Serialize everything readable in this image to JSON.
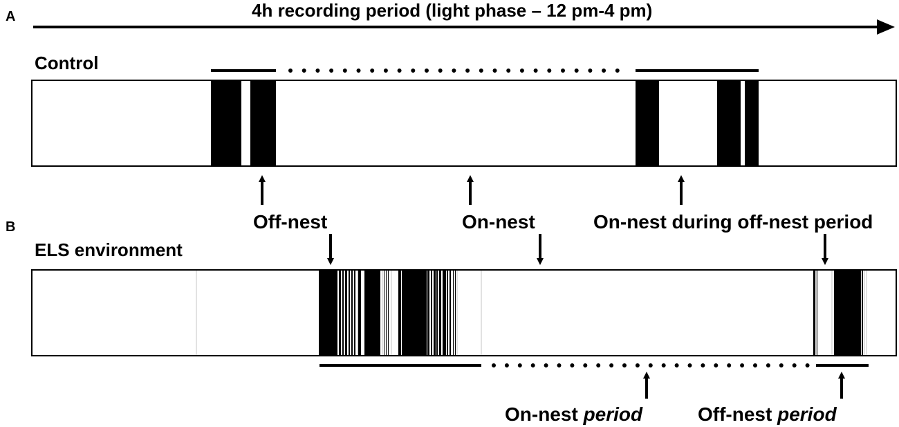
{
  "panel_a": {
    "letter": "A",
    "title": "4h recording period (light phase – 12 pm-4 pm)",
    "group": "Control"
  },
  "panel_b": {
    "letter": "B",
    "group": "ELS environment"
  },
  "labels": {
    "off_nest": "Off-nest",
    "on_nest": "On-nest",
    "on_nest_during": "On-nest during off-nest period",
    "on_nest_period_word": "On-nest ",
    "off_nest_period_word": "Off-nest ",
    "period_italic": "period"
  },
  "colors": {
    "ink": "#000000",
    "grey_tick": "#cfcfcf"
  }
}
